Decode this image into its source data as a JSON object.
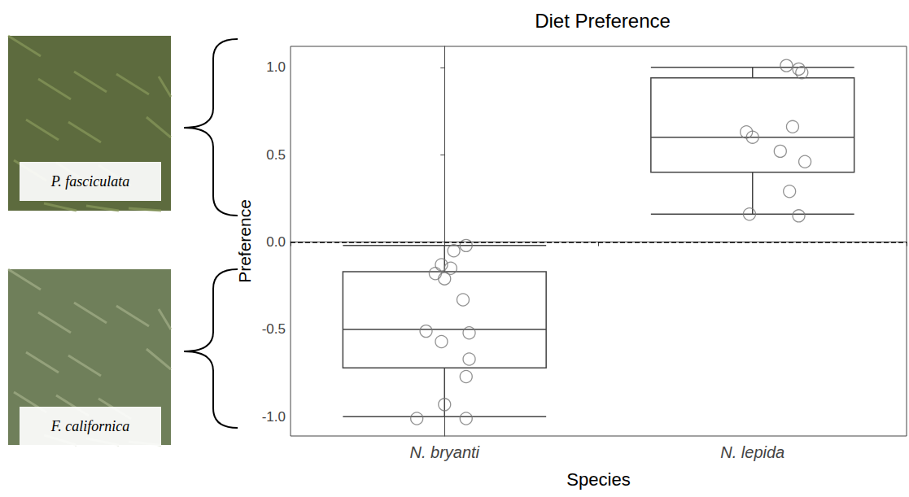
{
  "chart_data": {
    "type": "boxplot",
    "title": "Diet Preference",
    "x_label": "Species",
    "y_label": "Preference",
    "categories": [
      "N. bryanti",
      "N. lepida"
    ],
    "boxes": [
      [
        -1.0,
        -0.72,
        -0.5,
        -0.17,
        -0.02
      ],
      [
        0.16,
        0.4,
        0.6,
        0.94,
        1.0
      ]
    ],
    "points": [
      [
        [
          0.07,
          -0.02
        ],
        [
          0.03,
          -0.05
        ],
        [
          -0.01,
          -0.13
        ],
        [
          0.02,
          -0.15
        ],
        [
          -0.03,
          -0.18
        ],
        [
          0.0,
          -0.21
        ],
        [
          0.06,
          -0.33
        ],
        [
          -0.06,
          -0.51
        ],
        [
          0.08,
          -0.52
        ],
        [
          -0.01,
          -0.57
        ],
        [
          0.08,
          -0.67
        ],
        [
          0.07,
          -0.77
        ],
        [
          0.0,
          -0.93
        ],
        [
          -0.09,
          -1.01
        ],
        [
          0.07,
          -1.01
        ]
      ],
      [
        [
          0.11,
          1.01
        ],
        [
          0.15,
          0.99
        ],
        [
          0.16,
          0.97
        ],
        [
          -0.02,
          0.63
        ],
        [
          0.0,
          0.6
        ],
        [
          0.13,
          0.66
        ],
        [
          0.09,
          0.52
        ],
        [
          0.17,
          0.46
        ],
        [
          0.12,
          0.29
        ],
        [
          -0.01,
          0.16
        ],
        [
          0.15,
          0.15
        ]
      ]
    ],
    "hline": 0,
    "side_labels": [
      "P. fasciculata",
      "F. californica"
    ],
    "ylim": [
      -1.11,
      1.12
    ],
    "yticks": [
      {
        "value": -1,
        "label": "-1.0"
      },
      {
        "value": -0.5,
        "label": "-0.5"
      },
      {
        "value": 0,
        "label": "0.0"
      },
      {
        "value": 0.5,
        "label": "0.5"
      },
      {
        "value": 1,
        "label": "1.0"
      }
    ],
    "grid": false,
    "marker": "circle"
  }
}
